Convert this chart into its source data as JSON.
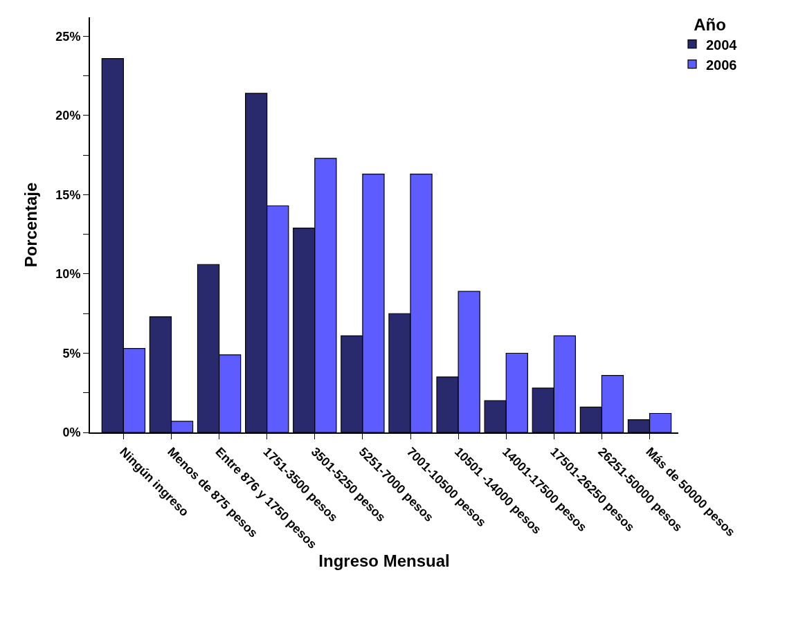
{
  "chart_data": {
    "type": "bar",
    "xlabel": "Ingreso Mensual",
    "ylabel": "Porcentaje",
    "legend_title": "Año",
    "categories": [
      "Ningún ingreso",
      "Menos de 875 pesos",
      "Entre 876 y 1750 pesos",
      "1751-3500 pesos",
      "3501-5250 pesos",
      "5251-7000 pesos",
      "7001-10500 pesos",
      "10501 -14000 pesos",
      "14001-17500 pesos",
      "17501-26250 pesos",
      "26251-50000 pesos",
      "Más de 50000 pesos"
    ],
    "series": [
      {
        "name": "2004",
        "color": "#29296e",
        "values": [
          23.6,
          7.3,
          10.6,
          21.4,
          12.9,
          6.1,
          7.5,
          3.5,
          2.0,
          2.8,
          1.6,
          0.8
        ]
      },
      {
        "name": "2006",
        "color": "#5c5cff",
        "values": [
          5.3,
          0.7,
          4.9,
          14.3,
          17.3,
          16.3,
          16.3,
          8.9,
          5.0,
          6.1,
          3.6,
          1.2
        ]
      }
    ],
    "ylim": [
      0,
      26.2
    ],
    "yticks": [
      {
        "value": 0,
        "label": "0%"
      },
      {
        "value": 2.5,
        "label": null
      },
      {
        "value": 5,
        "label": "5%"
      },
      {
        "value": 7.5,
        "label": null
      },
      {
        "value": 10,
        "label": "10%"
      },
      {
        "value": 12.5,
        "label": null
      },
      {
        "value": 15,
        "label": "15%"
      },
      {
        "value": 17.5,
        "label": null
      },
      {
        "value": 20,
        "label": "20%"
      },
      {
        "value": 22.5,
        "label": null
      },
      {
        "value": 25,
        "label": "25%"
      }
    ],
    "grid": false,
    "legend": "top right"
  }
}
